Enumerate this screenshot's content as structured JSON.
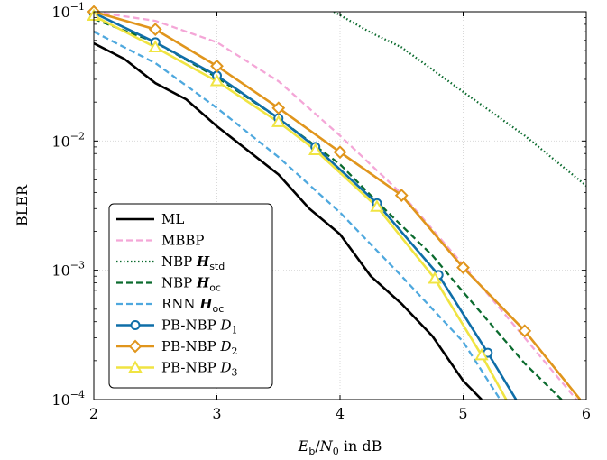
{
  "chart_data": {
    "type": "line",
    "xlabel": "E_b/N_0 in dB",
    "ylabel": "BLER",
    "xlim": [
      2,
      6
    ],
    "ylim": [
      0.0001,
      0.1
    ],
    "y_scale": "log",
    "grid": true,
    "legend_position": "bottom-left",
    "x_ticks": [
      "2",
      "3",
      "4",
      "5",
      "6"
    ],
    "y_ticks": [
      {
        "value": 0.1,
        "base": "10",
        "exp": "−1"
      },
      {
        "value": 0.01,
        "base": "10",
        "exp": "−2"
      },
      {
        "value": 0.001,
        "base": "10",
        "exp": "−3"
      },
      {
        "value": 0.0001,
        "base": "10",
        "exp": "−4"
      }
    ],
    "series": [
      {
        "name": "ML",
        "color": "#000000",
        "dash": "solid",
        "marker": "none",
        "points": [
          [
            2,
            0.057
          ],
          [
            2.25,
            0.043
          ],
          [
            2.5,
            0.028
          ],
          [
            2.75,
            0.021
          ],
          [
            3,
            0.013
          ],
          [
            3.5,
            0.0055
          ],
          [
            3.75,
            0.003
          ],
          [
            4,
            0.0019
          ],
          [
            4.25,
            0.0009
          ],
          [
            4.5,
            0.00055
          ],
          [
            4.75,
            0.00031
          ],
          [
            5,
            0.00014
          ],
          [
            5.15,
            0.0001
          ]
        ]
      },
      {
        "name": "MBBP",
        "color": "#f4a6d7",
        "dash": "dashed",
        "marker": "none",
        "points": [
          [
            2,
            0.1
          ],
          [
            2.5,
            0.085
          ],
          [
            3,
            0.058
          ],
          [
            3.5,
            0.029
          ],
          [
            4,
            0.011
          ],
          [
            4.5,
            0.0039
          ],
          [
            5,
            0.0011
          ],
          [
            5.5,
            0.0003
          ],
          [
            5.92,
            0.0001
          ]
        ]
      },
      {
        "name": "NBP H_std",
        "color": "#0b6b2e",
        "dash": "dotted",
        "marker": "none",
        "points": [
          [
            3.95,
            0.1
          ],
          [
            4.25,
            0.069
          ],
          [
            4.5,
            0.053
          ],
          [
            5,
            0.024
          ],
          [
            5.5,
            0.011
          ],
          [
            6,
            0.0045
          ]
        ]
      },
      {
        "name": "NBP H_oc",
        "color": "#0b6b2e",
        "dash": "dashed",
        "marker": "none",
        "points": [
          [
            2,
            0.088
          ],
          [
            2.5,
            0.058
          ],
          [
            3,
            0.031
          ],
          [
            3.5,
            0.015
          ],
          [
            4,
            0.0066
          ],
          [
            4.3,
            0.0034
          ],
          [
            4.75,
            0.0013
          ],
          [
            5,
            0.00068
          ],
          [
            5.5,
            0.00019
          ],
          [
            5.8,
            0.0001
          ]
        ]
      },
      {
        "name": "RNN H_oc",
        "color": "#4ea8de",
        "dash": "dashed",
        "marker": "none",
        "points": [
          [
            2,
            0.07
          ],
          [
            2.5,
            0.04
          ],
          [
            3,
            0.018
          ],
          [
            3.5,
            0.0075
          ],
          [
            4,
            0.0028
          ],
          [
            4.5,
            0.0009
          ],
          [
            5,
            0.00028
          ],
          [
            5.3,
            0.0001
          ]
        ]
      },
      {
        "name": "PB-NBP D_1",
        "color": "#0f6ea8",
        "dash": "solid",
        "marker": "circle",
        "points": [
          [
            2,
            0.098
          ],
          [
            2.5,
            0.058
          ],
          [
            3,
            0.032
          ],
          [
            3.5,
            0.015
          ],
          [
            3.8,
            0.009
          ],
          [
            4.3,
            0.0033
          ],
          [
            4.8,
            0.00092
          ],
          [
            5.2,
            0.00023
          ],
          [
            5.43,
            0.0001
          ]
        ]
      },
      {
        "name": "PB-NBP D_2",
        "color": "#e0951c",
        "dash": "solid",
        "marker": "diamond",
        "points": [
          [
            2,
            0.1
          ],
          [
            2.5,
            0.073
          ],
          [
            3,
            0.038
          ],
          [
            3.5,
            0.018
          ],
          [
            4,
            0.0082
          ],
          [
            4.5,
            0.0038
          ],
          [
            5,
            0.00105
          ],
          [
            5.5,
            0.00034
          ],
          [
            5.95,
            0.0001
          ]
        ]
      },
      {
        "name": "PB-NBP D_3",
        "color": "#f0e442",
        "dash": "solid",
        "marker": "triangle",
        "points": [
          [
            2,
            0.093
          ],
          [
            2.5,
            0.053
          ],
          [
            3,
            0.029
          ],
          [
            3.5,
            0.014
          ],
          [
            3.8,
            0.0085
          ],
          [
            4.3,
            0.0031
          ],
          [
            4.77,
            0.00086
          ],
          [
            5.15,
            0.00022
          ],
          [
            5.35,
            0.0001
          ]
        ]
      }
    ],
    "legend": [
      {
        "series": 0,
        "text": "ML",
        "sym": "",
        "sub": ""
      },
      {
        "series": 1,
        "text": "MBBP",
        "sym": "",
        "sub": ""
      },
      {
        "series": 2,
        "text": "NBP ",
        "sym": "H",
        "sub": "std"
      },
      {
        "series": 3,
        "text": "NBP ",
        "sym": "H",
        "sub": "oc"
      },
      {
        "series": 4,
        "text": "RNN ",
        "sym": "H",
        "sub": "oc"
      },
      {
        "series": 5,
        "text": "PB-NBP ",
        "sym": "D",
        "sub": "1"
      },
      {
        "series": 6,
        "text": "PB-NBP ",
        "sym": "D",
        "sub": "2"
      },
      {
        "series": 7,
        "text": "PB-NBP ",
        "sym": "D",
        "sub": "3"
      }
    ]
  }
}
